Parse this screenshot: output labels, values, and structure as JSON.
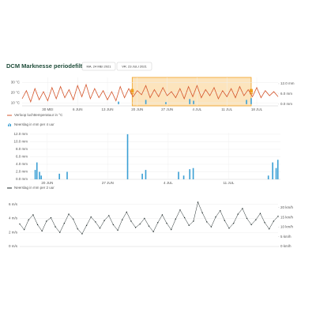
{
  "header": {
    "title": "DCM Marknesse periodefilter",
    "start_date": "MA. 24 MEI 2021",
    "end_date": "VR. 23 JULI 2021"
  },
  "chart_data": [
    {
      "type": "line",
      "grid": true,
      "xlim": [
        0,
        60
      ],
      "xticks": [
        {
          "value": 6,
          "label": "30 MEI"
        },
        {
          "value": 13,
          "label": "6 JUN"
        },
        {
          "value": 20,
          "label": "13 JUN"
        },
        {
          "value": 27,
          "label": "20 JUN"
        },
        {
          "value": 34,
          "label": "27 JUN"
        },
        {
          "value": 41,
          "label": "4 JUL"
        },
        {
          "value": 48,
          "label": "11 JUL"
        },
        {
          "value": 55,
          "label": "18 JUL"
        }
      ],
      "ylim": [
        7,
        35
      ],
      "yticks": [
        {
          "value": 10,
          "label": "10 °C"
        },
        {
          "value": 20,
          "label": "20 °C"
        },
        {
          "value": 30,
          "label": "30 °C"
        }
      ],
      "y2lim": [
        -1,
        15.7
      ],
      "y2ticks": [
        {
          "value": 0,
          "label": "0.0 mm"
        },
        {
          "value": 6,
          "label": "6.0 mm"
        },
        {
          "value": 12,
          "label": "12.0 mm"
        }
      ],
      "selection": [
        25.8,
        53.7
      ],
      "series": [
        {
          "name": "Verloop luchttemperatuur in °C",
          "color": "#d4552b",
          "x": [
            0,
            1,
            2,
            3,
            4,
            5,
            6,
            7,
            8,
            9,
            10,
            11,
            12,
            13,
            14,
            15,
            16,
            17,
            18,
            19,
            20,
            21,
            22,
            23,
            24,
            25,
            26,
            27,
            28,
            29,
            30,
            31,
            32,
            33,
            34,
            35,
            36,
            37,
            38,
            39,
            40,
            41,
            42,
            43,
            44,
            45,
            46,
            47,
            48,
            49,
            50,
            51,
            52,
            53,
            54,
            55,
            56,
            57,
            58,
            59,
            60
          ],
          "values": [
            14,
            22,
            11,
            24,
            13,
            21,
            12,
            25,
            14,
            26,
            15,
            23,
            13,
            27,
            16,
            28,
            14,
            24,
            15,
            22,
            13,
            21,
            12,
            26,
            15,
            24,
            16,
            22,
            18,
            27,
            15,
            23,
            16,
            25,
            17,
            21,
            15,
            24,
            14,
            26,
            16,
            27,
            15,
            23,
            17,
            25,
            14,
            22,
            16,
            24,
            15,
            26,
            17,
            23,
            16,
            25,
            15,
            22,
            17,
            21,
            16
          ]
        },
        {
          "type": "bar",
          "axis": "y2",
          "color": "#3a9fd4",
          "x": [
            22.6,
            29,
            33.7,
            39.3,
            40.2,
            52.6,
            53.7
          ],
          "values": [
            1.5,
            2.5,
            1.2,
            3,
            2,
            2.5,
            3.5
          ]
        }
      ]
    },
    {
      "type": "bar",
      "grid": true,
      "xlim": [
        25,
        54
      ],
      "xticks": [
        {
          "value": 27,
          "label": "20 JUN"
        },
        {
          "value": 34,
          "label": "27 JUN"
        },
        {
          "value": 41,
          "label": "4 JUL"
        },
        {
          "value": 48,
          "label": "11 JUL"
        }
      ],
      "ylim": [
        0,
        12.4
      ],
      "yticks": [
        {
          "value": 0,
          "label": "0.0 mm"
        },
        {
          "value": 2,
          "label": "2.0 mm"
        },
        {
          "value": 4,
          "label": "4.0 mm"
        },
        {
          "value": 6,
          "label": "6.0 mm"
        },
        {
          "value": 8,
          "label": "8.0 mm"
        },
        {
          "value": 10,
          "label": "10.0 mm"
        },
        {
          "value": 12,
          "label": "12.0 mm"
        }
      ],
      "series": [
        {
          "name": "Neerslag in mm per 4 uur",
          "color": "#3a9fd4",
          "x": [
            25.6,
            25.8,
            26.1,
            26.3,
            28.4,
            29.3,
            36.3,
            38,
            38.4,
            42.2,
            42.8,
            43.5,
            43.9,
            52.6,
            53.1,
            53.5,
            53.7
          ],
          "values": [
            2.5,
            4.5,
            2,
            1,
            1.5,
            2,
            12,
            1.5,
            2.5,
            2,
            1,
            2.7,
            3,
            1,
            4.5,
            3,
            5.2
          ]
        }
      ]
    },
    {
      "type": "line",
      "grid": true,
      "markers": true,
      "xlim": [
        25,
        54
      ],
      "ylim": [
        0,
        7.2
      ],
      "yticks": [
        {
          "value": 0,
          "label": "0 m/s"
        },
        {
          "value": 2,
          "label": "2 m/s"
        },
        {
          "value": 4,
          "label": "4 m/s"
        },
        {
          "value": 6,
          "label": "6 m/s"
        }
      ],
      "y2lim": [
        0,
        26
      ],
      "y2ticks": [
        {
          "value": 0,
          "label": "0 km/h"
        },
        {
          "value": 5,
          "label": "5 km/h"
        },
        {
          "value": 10,
          "label": "10 km/h"
        },
        {
          "value": 15,
          "label": "15 km/h"
        },
        {
          "value": 20,
          "label": "20 km/h"
        }
      ],
      "series": [
        {
          "name": "Neerslag in mm per 2 uur",
          "color": "#1f2a2a",
          "x": [
            25,
            25.5,
            26,
            26.5,
            27,
            27.5,
            28,
            28.5,
            29,
            29.5,
            30,
            30.5,
            31,
            31.5,
            32,
            32.5,
            33,
            33.5,
            34,
            34.5,
            35,
            35.5,
            36,
            36.5,
            37,
            37.5,
            38,
            38.5,
            39,
            39.5,
            40,
            40.5,
            41,
            41.5,
            42,
            42.5,
            43,
            43.5,
            44,
            44.5,
            45,
            45.5,
            46,
            46.5,
            47,
            47.5,
            48,
            48.5,
            49,
            49.5,
            50,
            50.5,
            51,
            51.5,
            52,
            52.5,
            53,
            53.5,
            54
          ],
          "values": [
            3.2,
            2.4,
            3.8,
            4.5,
            3.1,
            2.2,
            3.6,
            4.1,
            2.8,
            2.0,
            3.3,
            4.6,
            3.9,
            2.5,
            1.8,
            3.0,
            4.2,
            3.5,
            2.6,
            3.7,
            4.4,
            3.1,
            2.3,
            3.8,
            4.9,
            3.6,
            2.7,
            3.2,
            4.0,
            2.9,
            2.1,
            3.4,
            4.5,
            3.3,
            2.4,
            3.9,
            5.2,
            4.1,
            3.0,
            3.6,
            6.3,
            4.8,
            3.5,
            2.8,
            4.2,
            5.1,
            3.7,
            2.6,
            3.3,
            4.6,
            5.4,
            4.0,
            3.1,
            3.8,
            4.7,
            3.4,
            2.5,
            3.6,
            4.3
          ]
        }
      ]
    }
  ]
}
